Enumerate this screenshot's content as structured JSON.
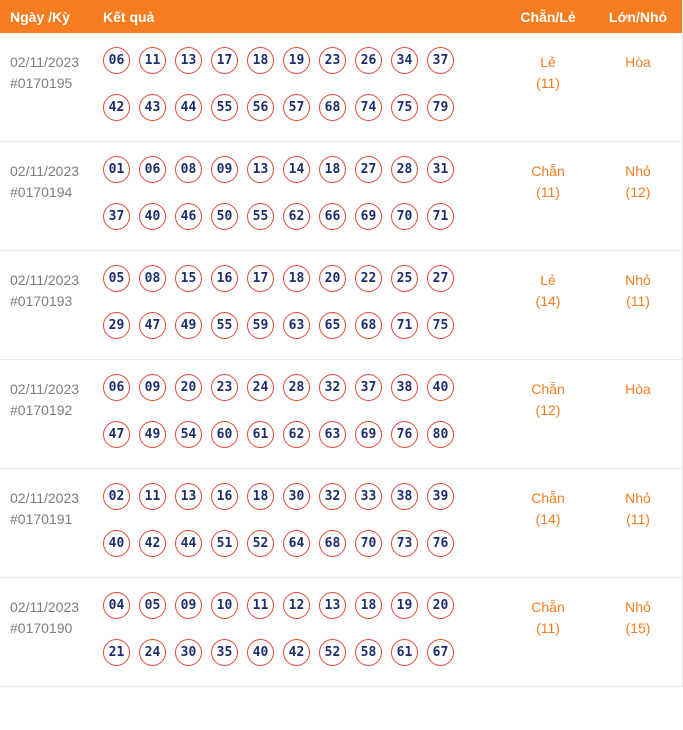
{
  "colors": {
    "header_bg": "#f57c1f",
    "accent_orange": "#f57c1f",
    "ball_border": "#e0473a",
    "ball_number_text": "#1d2d6b",
    "date_text": "#7d7d7d"
  },
  "header": {
    "col_date": "Ngày /Kỳ",
    "col_result": "Kết quả",
    "col_evenodd": "Chẵn/Lẻ",
    "col_bigsmall": "Lớn/Nhỏ"
  },
  "rows": [
    {
      "date": "02/11/2023",
      "draw_id": "#0170195",
      "numbers_line1": [
        "06",
        "11",
        "13",
        "17",
        "18",
        "19",
        "23",
        "26",
        "34",
        "37"
      ],
      "numbers_line2": [
        "42",
        "43",
        "44",
        "55",
        "56",
        "57",
        "68",
        "74",
        "75",
        "79"
      ],
      "evenodd": "Lẻ",
      "evenodd_count": "(11)",
      "bigsmall": "Hòa",
      "bigsmall_count": ""
    },
    {
      "date": "02/11/2023",
      "draw_id": "#0170194",
      "numbers_line1": [
        "01",
        "06",
        "08",
        "09",
        "13",
        "14",
        "18",
        "27",
        "28",
        "31"
      ],
      "numbers_line2": [
        "37",
        "40",
        "46",
        "50",
        "55",
        "62",
        "66",
        "69",
        "70",
        "71"
      ],
      "evenodd": "Chẵn",
      "evenodd_count": "(11)",
      "bigsmall": "Nhỏ",
      "bigsmall_count": "(12)"
    },
    {
      "date": "02/11/2023",
      "draw_id": "#0170193",
      "numbers_line1": [
        "05",
        "08",
        "15",
        "16",
        "17",
        "18",
        "20",
        "22",
        "25",
        "27"
      ],
      "numbers_line2": [
        "29",
        "47",
        "49",
        "55",
        "59",
        "63",
        "65",
        "68",
        "71",
        "75"
      ],
      "evenodd": "Lẻ",
      "evenodd_count": "(14)",
      "bigsmall": "Nhỏ",
      "bigsmall_count": "(11)"
    },
    {
      "date": "02/11/2023",
      "draw_id": "#0170192",
      "numbers_line1": [
        "06",
        "09",
        "20",
        "23",
        "24",
        "28",
        "32",
        "37",
        "38",
        "40"
      ],
      "numbers_line2": [
        "47",
        "49",
        "54",
        "60",
        "61",
        "62",
        "63",
        "69",
        "76",
        "80"
      ],
      "evenodd": "Chẵn",
      "evenodd_count": "(12)",
      "bigsmall": "Hòa",
      "bigsmall_count": ""
    },
    {
      "date": "02/11/2023",
      "draw_id": "#0170191",
      "numbers_line1": [
        "02",
        "11",
        "13",
        "16",
        "18",
        "30",
        "32",
        "33",
        "38",
        "39"
      ],
      "numbers_line2": [
        "40",
        "42",
        "44",
        "51",
        "52",
        "64",
        "68",
        "70",
        "73",
        "76"
      ],
      "evenodd": "Chẵn",
      "evenodd_count": "(14)",
      "bigsmall": "Nhỏ",
      "bigsmall_count": "(11)"
    },
    {
      "date": "02/11/2023",
      "draw_id": "#0170190",
      "numbers_line1": [
        "04",
        "05",
        "09",
        "10",
        "11",
        "12",
        "13",
        "18",
        "19",
        "20"
      ],
      "numbers_line2": [
        "21",
        "24",
        "30",
        "35",
        "40",
        "42",
        "52",
        "58",
        "61",
        "67"
      ],
      "evenodd": "Chẵn",
      "evenodd_count": "(11)",
      "bigsmall": "Nhỏ",
      "bigsmall_count": "(15)"
    }
  ]
}
